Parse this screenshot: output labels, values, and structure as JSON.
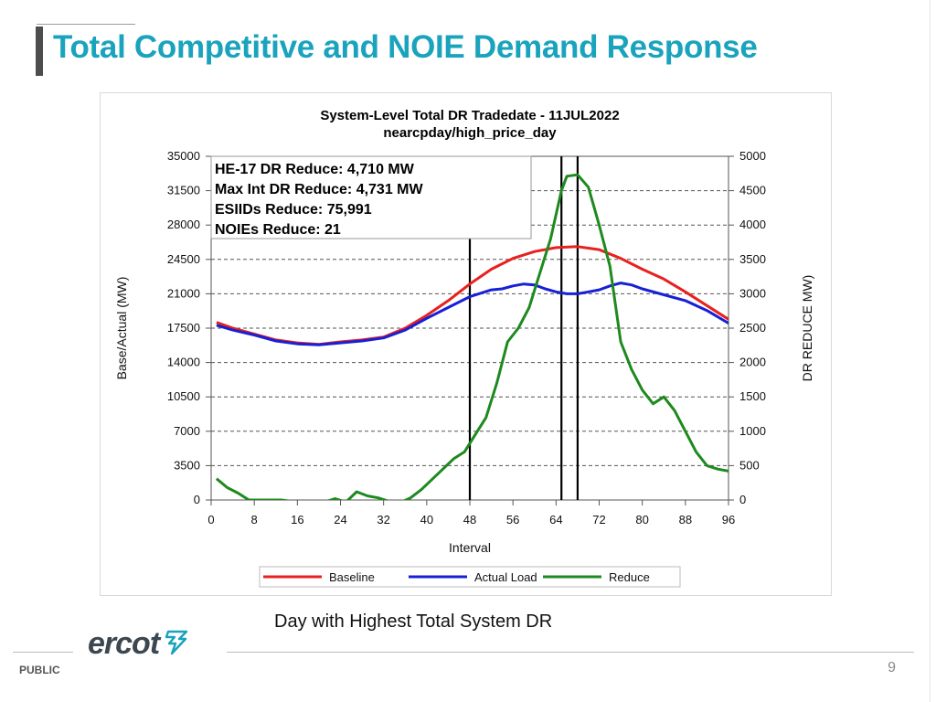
{
  "slide": {
    "title": "Total Competitive and NOIE  Demand Response",
    "caption": "Day with Highest Total System DR",
    "footer_label": "PUBLIC",
    "logo_text": "ercot",
    "page_number": "9",
    "title_color": "#1aa3bd"
  },
  "chart_data": {
    "type": "line",
    "title": "System-Level Total DR Tradedate - 11JUL2022",
    "subtitle": "nearcpday/high_price_day",
    "xlabel": "Interval",
    "ylabel": "Base/Actual (MW)",
    "y2label": "DR REDUCE MW)",
    "xlim": [
      0,
      96
    ],
    "ylim": [
      0,
      35000
    ],
    "y2lim": [
      0,
      5000
    ],
    "x_ticks": [
      0,
      8,
      16,
      24,
      32,
      40,
      48,
      56,
      64,
      72,
      80,
      88,
      96
    ],
    "y_ticks": [
      0,
      3500,
      7000,
      10500,
      14000,
      17500,
      21000,
      24500,
      28000,
      31500,
      35000
    ],
    "y2_ticks": [
      0,
      500,
      1000,
      1500,
      2000,
      2500,
      3000,
      3500,
      4000,
      4500,
      5000
    ],
    "grid": "horizontal dashed",
    "legend": "bottom",
    "vertical_lines": [
      48,
      65,
      68
    ],
    "info_box": [
      "HE-17 DR Reduce: 4,710 MW",
      "Max Int DR Reduce: 4,731 MW",
      "ESIIDs Reduce: 75,991",
      "NOIEs Reduce: 21"
    ],
    "series": [
      {
        "name": "Baseline",
        "axis": "left",
        "color": "#e8211e",
        "x": [
          1,
          4,
          8,
          12,
          16,
          20,
          24,
          28,
          32,
          36,
          40,
          44,
          48,
          52,
          56,
          60,
          64,
          68,
          72,
          76,
          80,
          84,
          88,
          92,
          96
        ],
        "y": [
          18100,
          17500,
          16900,
          16300,
          16000,
          15850,
          16100,
          16300,
          16600,
          17500,
          18800,
          20300,
          22000,
          23500,
          24600,
          25300,
          25700,
          25800,
          25500,
          24600,
          23500,
          22500,
          21200,
          19800,
          18400
        ]
      },
      {
        "name": "Actual Load",
        "axis": "left",
        "color": "#1620d6",
        "x": [
          1,
          4,
          8,
          12,
          16,
          20,
          24,
          28,
          32,
          36,
          40,
          44,
          48,
          52,
          54,
          56,
          58,
          60,
          62,
          64,
          66,
          68,
          70,
          72,
          74,
          76,
          78,
          80,
          84,
          88,
          92,
          96
        ],
        "y": [
          17800,
          17300,
          16800,
          16200,
          15900,
          15800,
          16000,
          16200,
          16500,
          17300,
          18500,
          19600,
          20700,
          21400,
          21500,
          21800,
          22000,
          21900,
          21500,
          21200,
          21000,
          21000,
          21200,
          21400,
          21800,
          22100,
          21900,
          21500,
          20900,
          20300,
          19300,
          18000
        ]
      },
      {
        "name": "Reduce",
        "axis": "right",
        "color": "#1e8a1e",
        "x": [
          1,
          3,
          5,
          7,
          9,
          11,
          13,
          15,
          17,
          19,
          21,
          23,
          25,
          27,
          29,
          31,
          33,
          35,
          37,
          39,
          41,
          43,
          45,
          47,
          49,
          51,
          53,
          55,
          57,
          59,
          61,
          63,
          65,
          66,
          68,
          70,
          72,
          74,
          76,
          78,
          80,
          82,
          84,
          86,
          88,
          90,
          92,
          94,
          96
        ],
        "y": [
          310,
          180,
          100,
          0,
          0,
          0,
          0,
          -20,
          -40,
          -60,
          -30,
          20,
          -30,
          120,
          60,
          30,
          -20,
          -40,
          30,
          150,
          300,
          450,
          600,
          700,
          950,
          1200,
          1700,
          2300,
          2500,
          2800,
          3300,
          3800,
          4500,
          4710,
          4731,
          4550,
          4000,
          3400,
          2300,
          1900,
          1600,
          1400,
          1500,
          1300,
          1000,
          700,
          500,
          450,
          420
        ]
      }
    ]
  }
}
